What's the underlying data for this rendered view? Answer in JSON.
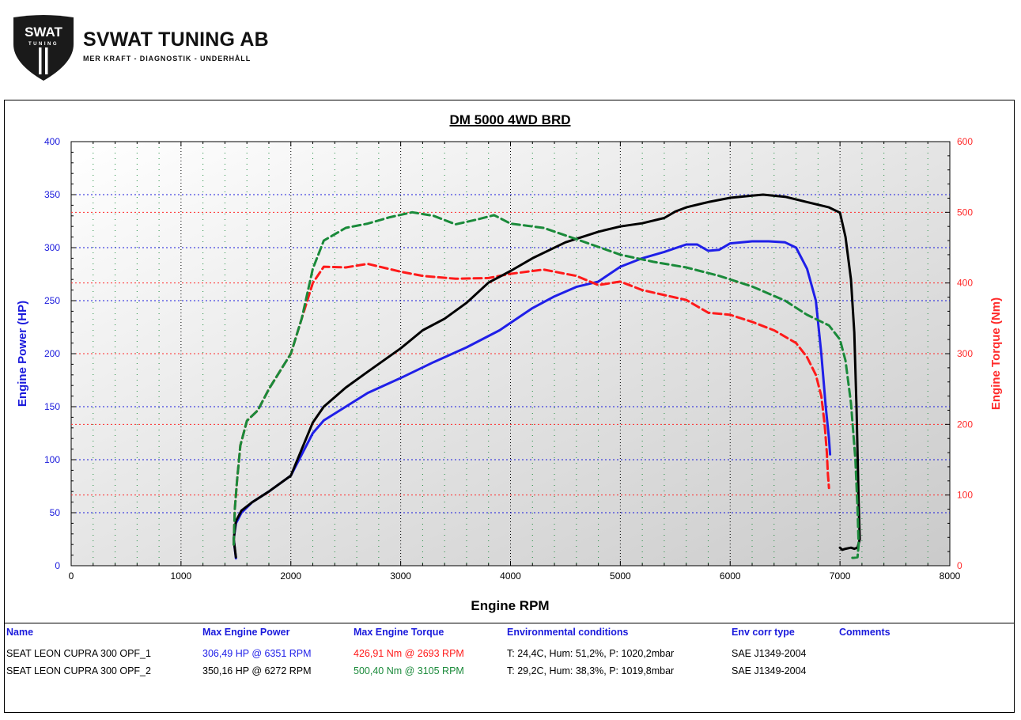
{
  "brand": {
    "logo_mark_text": "SWAT",
    "logo_mark_subtext": "TUNING",
    "name": "SVWAT TUNING AB",
    "tagline": "MER KRAFT - DIAGNOSTIK - UNDERHÅLL"
  },
  "colors": {
    "power_axis": "#1a1adc",
    "torque_axis": "#ff2a2a",
    "run1_power": "#1f1fe8",
    "run1_torque": "#ff1a1a",
    "run2_power": "#000000",
    "run2_torque": "#1a8a3a"
  },
  "chart_data": {
    "type": "line",
    "title": "DM 5000 4WD BRD",
    "xlabel": "Engine RPM",
    "ylabel_left": "Engine Power (HP)",
    "ylabel_right": "Engine Torque (Nm)",
    "xlim": [
      0,
      8000
    ],
    "ylim_left": [
      0,
      400
    ],
    "ylim_right": [
      0,
      600
    ],
    "x_ticks": [
      "0",
      "1000",
      "2000",
      "3000",
      "4000",
      "5000",
      "6000",
      "7000",
      "8000"
    ],
    "y_ticks_left": [
      "0",
      "50",
      "100",
      "150",
      "200",
      "250",
      "300",
      "350",
      "400"
    ],
    "y_ticks_right": [
      "0",
      "100",
      "200",
      "300",
      "400",
      "500",
      "600"
    ],
    "grid": true,
    "series": [
      {
        "name": "SEAT LEON CUPRA 300 OPF_1",
        "quantity": "power",
        "axis": "left",
        "style": "solid",
        "color": "#1f1fe8",
        "x": [
          1500,
          1480,
          1500,
          1550,
          1650,
          1800,
          2000,
          2100,
          2200,
          2300,
          2500,
          2700,
          3000,
          3300,
          3600,
          3900,
          4200,
          4400,
          4600,
          4800,
          5000,
          5200,
          5400,
          5600,
          5700,
          5800,
          5900,
          6000,
          6200,
          6350,
          6500,
          6600,
          6700,
          6780,
          6830,
          6870,
          6900,
          6910
        ],
        "y": [
          7,
          25,
          40,
          50,
          60,
          70,
          85,
          105,
          125,
          137,
          150,
          163,
          177,
          192,
          206,
          222,
          243,
          254,
          263,
          268,
          282,
          290,
          296,
          303,
          303,
          297,
          298,
          304,
          306,
          306,
          305,
          300,
          280,
          250,
          200,
          150,
          120,
          105
        ]
      },
      {
        "name": "SEAT LEON CUPRA 300 OPF_1",
        "quantity": "torque",
        "axis": "right",
        "style": "dashed",
        "color": "#ff1a1a",
        "x": [
          1480,
          1490,
          1510,
          1540,
          1600,
          1700,
          1800,
          1900,
          2000,
          2100,
          2200,
          2300,
          2500,
          2700,
          3000,
          3200,
          3500,
          3800,
          4000,
          4300,
          4600,
          4800,
          5000,
          5200,
          5400,
          5600,
          5800,
          6000,
          6200,
          6400,
          6600,
          6700,
          6780,
          6830,
          6860,
          6880,
          6890,
          6900
        ],
        "y": [
          30,
          80,
          120,
          170,
          205,
          220,
          250,
          275,
          300,
          350,
          400,
          423,
          422,
          427,
          416,
          410,
          406,
          407,
          413,
          419,
          410,
          397,
          402,
          390,
          383,
          376,
          358,
          355,
          345,
          333,
          315,
          295,
          270,
          240,
          200,
          160,
          130,
          110
        ]
      },
      {
        "name": "SEAT LEON CUPRA 300 OPF_2",
        "quantity": "power",
        "axis": "left",
        "style": "solid",
        "color": "#000000",
        "x": [
          1500,
          1480,
          1500,
          1550,
          1650,
          1800,
          2000,
          2100,
          2200,
          2300,
          2500,
          2700,
          3000,
          3200,
          3400,
          3600,
          3800,
          4000,
          4200,
          4500,
          4800,
          5000,
          5200,
          5400,
          5500,
          5600,
          5800,
          6000,
          6200,
          6300,
          6500,
          6700,
          6900,
          7000,
          7050,
          7100,
          7130,
          7150,
          7170,
          7180,
          7160,
          7130,
          7100,
          7050,
          7020,
          7000
        ],
        "y": [
          8,
          25,
          42,
          52,
          60,
          70,
          85,
          110,
          135,
          150,
          168,
          183,
          205,
          222,
          233,
          248,
          267,
          278,
          290,
          305,
          315,
          320,
          323,
          328,
          334,
          338,
          343,
          347,
          349,
          350,
          348,
          343,
          338,
          333,
          310,
          270,
          220,
          150,
          60,
          25,
          17,
          16,
          17,
          16,
          15,
          17
        ]
      },
      {
        "name": "SEAT LEON CUPRA 300 OPF_2",
        "quantity": "torque",
        "axis": "right",
        "style": "dashed",
        "color": "#1a8a3a",
        "x": [
          1480,
          1490,
          1510,
          1540,
          1600,
          1700,
          1800,
          1900,
          2000,
          2100,
          2200,
          2300,
          2500,
          2700,
          2900,
          3105,
          3300,
          3500,
          3700,
          3850,
          4000,
          4300,
          4600,
          5000,
          5300,
          5600,
          5900,
          6200,
          6500,
          6700,
          6900,
          7000,
          7050,
          7100,
          7140,
          7160,
          7170,
          7160,
          7120,
          7080
        ],
        "y": [
          30,
          80,
          120,
          170,
          205,
          220,
          250,
          275,
          300,
          350,
          420,
          460,
          478,
          484,
          493,
          500,
          495,
          483,
          490,
          496,
          484,
          478,
          462,
          440,
          430,
          422,
          410,
          395,
          375,
          355,
          340,
          320,
          290,
          230,
          150,
          80,
          30,
          12,
          11,
          12
        ]
      }
    ]
  },
  "results": {
    "headers": [
      "Name",
      "Max Engine Power",
      "Max Engine Torque",
      "Environmental conditions",
      "Env corr type",
      "Comments"
    ],
    "rows": [
      {
        "name": "SEAT LEON CUPRA 300 OPF_1",
        "max_power": "306,49 HP @ 6351 RPM",
        "max_torque": "426,91 Nm @ 2693 RPM",
        "env": "T: 24,4C, Hum: 51,2%, P: 1020,2mbar",
        "corr": "SAE J1349-2004",
        "comments": ""
      },
      {
        "name": "SEAT LEON CUPRA 300 OPF_2",
        "max_power": "350,16 HP @ 6272 RPM",
        "max_torque": "500,40 Nm @ 3105 RPM",
        "env": "T: 29,2C, Hum: 38,3%, P: 1019,8mbar",
        "corr": "SAE J1349-2004",
        "comments": ""
      }
    ]
  }
}
